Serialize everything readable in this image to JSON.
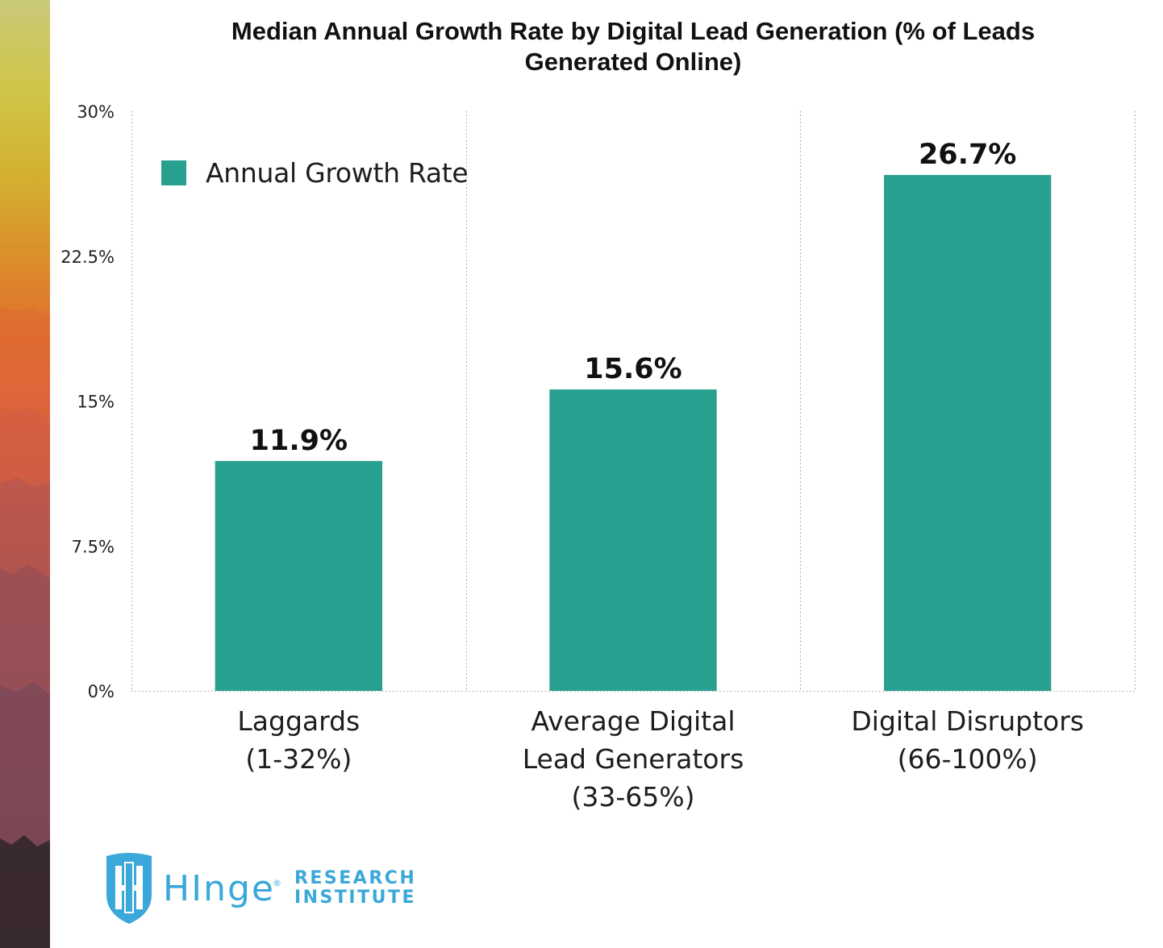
{
  "chart_data": {
    "type": "bar",
    "title_lines": [
      "Median Annual Growth Rate by Digital Lead Generation (% of Leads",
      "Generated Online)"
    ],
    "xlabel": "",
    "ylabel": "",
    "ylim": [
      0,
      30
    ],
    "y_ticks": [
      {
        "value": 0,
        "label": "0%"
      },
      {
        "value": 7.5,
        "label": "7.5%"
      },
      {
        "value": 15,
        "label": "15%"
      },
      {
        "value": 22.5,
        "label": "22.5%"
      },
      {
        "value": 30,
        "label": "30%"
      }
    ],
    "categories": [
      [
        "Laggards",
        "(1-32%)"
      ],
      [
        "Average Digital",
        "Lead Generators",
        "(33-65%)"
      ],
      [
        "Digital Disruptors",
        "(66-100%)"
      ]
    ],
    "series": [
      {
        "name": "Annual Growth Rate",
        "color": "#28a08f",
        "values": [
          11.9,
          15.6,
          26.7
        ],
        "data_labels": [
          "11.9%",
          "15.6%",
          "26.7%"
        ]
      }
    ],
    "legend": {
      "label": "Annual Growth Rate",
      "position": "top-left"
    },
    "grid": {
      "x": true,
      "y": false,
      "style": "dotted"
    }
  },
  "logo": {
    "hinge": "HInge",
    "reg": "®",
    "research": "RESEARCH",
    "institute": "INSTITUTE",
    "color": "#3aa8d8"
  }
}
